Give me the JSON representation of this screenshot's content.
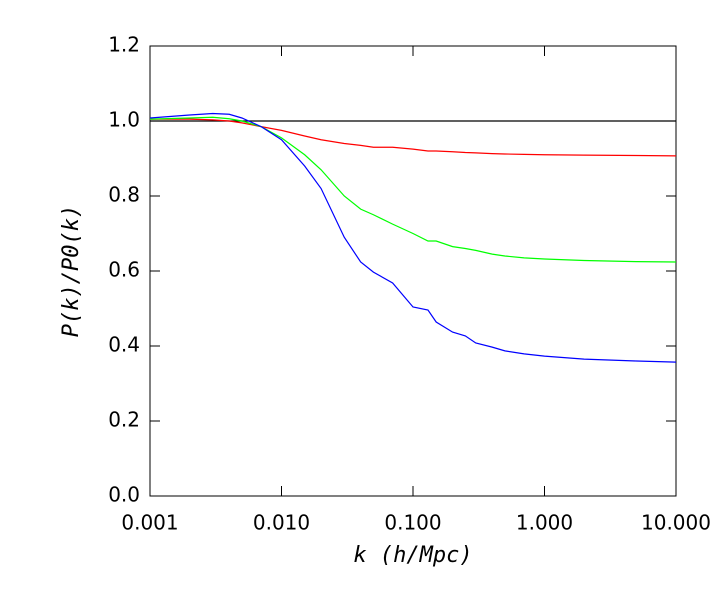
{
  "chart_data": {
    "type": "line",
    "x_label": "k (h/Mpc)",
    "y_label": "P(k)/P0(k)",
    "x": [
      0.001,
      0.002,
      0.003,
      0.004,
      0.005,
      0.007,
      0.01,
      0.015,
      0.02,
      0.03,
      0.04,
      0.05,
      0.07,
      0.1,
      0.13,
      0.15,
      0.2,
      0.25,
      0.3,
      0.4,
      0.5,
      0.7,
      1,
      2,
      5,
      10
    ],
    "series": [
      {
        "color": "#000000",
        "values": [
          1,
          1,
          1,
          1,
          1,
          1,
          1,
          1,
          1,
          1,
          1,
          1,
          1,
          1,
          1,
          1,
          1,
          1,
          1,
          1,
          1,
          1,
          1,
          1,
          1,
          1
        ]
      },
      {
        "color": "#ff0000",
        "values": [
          1.005,
          1.005,
          1.003,
          1.0,
          0.995,
          0.985,
          0.975,
          0.96,
          0.95,
          0.94,
          0.935,
          0.93,
          0.93,
          0.925,
          0.92,
          0.92,
          0.918,
          0.916,
          0.915,
          0.913,
          0.912,
          0.911,
          0.91,
          0.909,
          0.908,
          0.907
        ]
      },
      {
        "color": "#00ff00",
        "values": [
          1.005,
          1.008,
          1.01,
          1.006,
          1.0,
          0.985,
          0.955,
          0.91,
          0.87,
          0.8,
          0.765,
          0.75,
          0.725,
          0.7,
          0.68,
          0.68,
          0.665,
          0.66,
          0.655,
          0.645,
          0.64,
          0.635,
          0.632,
          0.628,
          0.625,
          0.624
        ]
      },
      {
        "color": "#0000ff",
        "values": [
          1.008,
          1.016,
          1.02,
          1.018,
          1.008,
          0.985,
          0.95,
          0.88,
          0.82,
          0.69,
          0.624,
          0.597,
          0.568,
          0.504,
          0.496,
          0.464,
          0.437,
          0.427,
          0.408,
          0.397,
          0.387,
          0.379,
          0.373,
          0.365,
          0.36,
          0.357
        ]
      }
    ],
    "xscale": "log",
    "xlim": [
      0.001,
      10
    ],
    "xticks": [
      {
        "value": 0.001,
        "label": "0.001"
      },
      {
        "value": 0.01,
        "label": "0.010"
      },
      {
        "value": 0.1,
        "label": "0.100"
      },
      {
        "value": 1,
        "label": "1.000"
      },
      {
        "value": 10,
        "label": "10.000"
      }
    ],
    "ylim": [
      0,
      1.2
    ],
    "yticks": [
      {
        "value": 0,
        "label": "0.0"
      },
      {
        "value": 0.2,
        "label": "0.2"
      },
      {
        "value": 0.4,
        "label": "0.4"
      },
      {
        "value": 0.6,
        "label": "0.6"
      },
      {
        "value": 0.8,
        "label": "0.8"
      },
      {
        "value": 1,
        "label": "1.0"
      },
      {
        "value": 1.2,
        "label": "1.2"
      }
    ],
    "grid": false
  }
}
